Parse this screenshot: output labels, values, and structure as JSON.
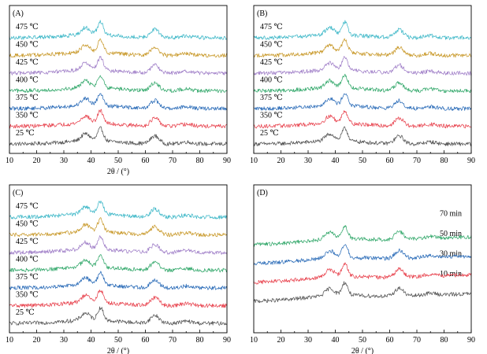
{
  "chart_data": [
    {
      "type": "line",
      "panel_label": "(A)",
      "xlabel": "2θ / (°)",
      "xlim": [
        10,
        90
      ],
      "x_ticks": [
        "10",
        "20",
        "30",
        "40",
        "50",
        "60",
        "70",
        "80",
        "90"
      ],
      "y_axis": "stacked traces, arbitrary intensity, no ticks",
      "grid": false,
      "peaks_2theta": [
        38,
        43.5,
        63.5
      ],
      "series": [
        {
          "name": "25 ℃",
          "color": "#555555"
        },
        {
          "name": "350 ℃",
          "color": "#e8444f"
        },
        {
          "name": "375 ℃",
          "color": "#2b6cb8"
        },
        {
          "name": "400 ℃",
          "color": "#33a86b"
        },
        {
          "name": "425 ℃",
          "color": "#a07fc8"
        },
        {
          "name": "450 ℃",
          "color": "#c99a2c"
        },
        {
          "name": "475 ℃",
          "color": "#3fb8c8"
        }
      ]
    },
    {
      "type": "line",
      "panel_label": "(B)",
      "xlabel": "",
      "xlim": [
        10,
        90
      ],
      "x_ticks": [
        "10",
        "20",
        "30",
        "40",
        "50",
        "60",
        "70",
        "80",
        "90"
      ],
      "y_axis": "stacked traces, arbitrary intensity, no ticks",
      "grid": false,
      "peaks_2theta": [
        38,
        43.5,
        63.5
      ],
      "series": [
        {
          "name": "25 ℃",
          "color": "#555555"
        },
        {
          "name": "350 ℃",
          "color": "#e8444f"
        },
        {
          "name": "375 ℃",
          "color": "#2b6cb8"
        },
        {
          "name": "400 ℃",
          "color": "#33a86b"
        },
        {
          "name": "425 ℃",
          "color": "#a07fc8"
        },
        {
          "name": "450 ℃",
          "color": "#c99a2c"
        },
        {
          "name": "475 ℃",
          "color": "#3fb8c8"
        }
      ]
    },
    {
      "type": "line",
      "panel_label": "(C)",
      "xlabel": "2θ / (°)",
      "xlim": [
        10,
        90
      ],
      "x_ticks": [
        "10",
        "20",
        "30",
        "40",
        "50",
        "60",
        "70",
        "80",
        "90"
      ],
      "y_axis": "stacked traces, arbitrary intensity, no ticks",
      "grid": false,
      "peaks_2theta": [
        38,
        43.5,
        63.5
      ],
      "series": [
        {
          "name": "25 ℃",
          "color": "#555555"
        },
        {
          "name": "350 ℃",
          "color": "#e8444f"
        },
        {
          "name": "375 ℃",
          "color": "#2b6cb8"
        },
        {
          "name": "400 ℃",
          "color": "#33a86b"
        },
        {
          "name": "425 ℃",
          "color": "#a07fc8"
        },
        {
          "name": "450 ℃",
          "color": "#c99a2c"
        },
        {
          "name": "475 ℃",
          "color": "#3fb8c8"
        }
      ]
    },
    {
      "type": "line",
      "panel_label": "(D)",
      "xlabel": "2θ / (°)",
      "xlim": [
        10,
        90
      ],
      "x_ticks": [
        "10",
        "20",
        "30",
        "40",
        "50",
        "60",
        "70",
        "80",
        "90"
      ],
      "y_axis": "stacked traces, arbitrary intensity, no ticks",
      "grid": false,
      "peaks_2theta": [
        38,
        43.5,
        63.5
      ],
      "series": [
        {
          "name": "10 min",
          "color": "#555555"
        },
        {
          "name": "30 min",
          "color": "#e8444f"
        },
        {
          "name": "50 min",
          "color": "#2b6cb8"
        },
        {
          "name": "70 min",
          "color": "#33a86b"
        }
      ]
    }
  ]
}
